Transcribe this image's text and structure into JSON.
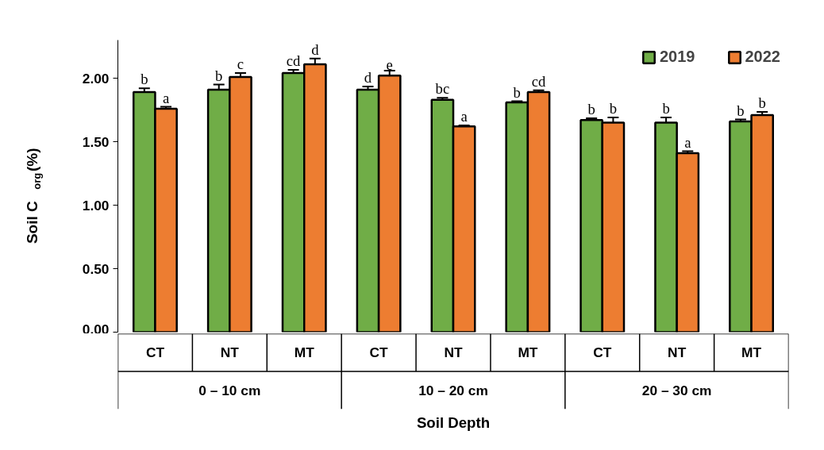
{
  "chart_data": {
    "type": "bar",
    "ylabel": "Soil C$_{org}$(%)",
    "xlabel": "Soil Depth",
    "categories": [
      "CT",
      "NT",
      "MT",
      "CT",
      "NT",
      "MT",
      "CT",
      "NT",
      "MT"
    ],
    "annotations": [
      "0 – 10 cm",
      "10 – 20 cm",
      "20 – 30 cm"
    ],
    "series": [
      {
        "name": "2019",
        "color": "#70ad47",
        "values": [
          1.89,
          1.91,
          2.04,
          1.91,
          1.83,
          1.81,
          1.67,
          1.65,
          1.66
        ],
        "errors": [
          0.03,
          0.04,
          0.025,
          0.025,
          0.015,
          0.008,
          0.015,
          0.04,
          0.015
        ],
        "value_labels": [
          "b",
          "b",
          "cd",
          "d",
          "bc",
          "b",
          "b",
          "b",
          "b"
        ]
      },
      {
        "name": "2022",
        "color": "#ed7d31",
        "values": [
          1.76,
          2.01,
          2.11,
          2.02,
          1.62,
          1.89,
          1.65,
          1.41,
          1.71
        ],
        "errors": [
          0.015,
          0.03,
          0.045,
          0.04,
          0.008,
          0.015,
          0.04,
          0.015,
          0.025
        ],
        "value_labels": [
          "a",
          "c",
          "d",
          "e",
          "a",
          "cd",
          "b",
          "a",
          "b"
        ]
      }
    ],
    "ylim": [
      0,
      2.3
    ],
    "yticks": [
      {
        "value": 0,
        "label": "0.00"
      },
      {
        "value": 0.5,
        "label": "0.50"
      },
      {
        "value": 1,
        "label": "1.00"
      },
      {
        "value": 1.5,
        "label": "1.50"
      },
      {
        "value": 2,
        "label": "2.00"
      }
    ],
    "grid": false,
    "legend": "top right"
  }
}
